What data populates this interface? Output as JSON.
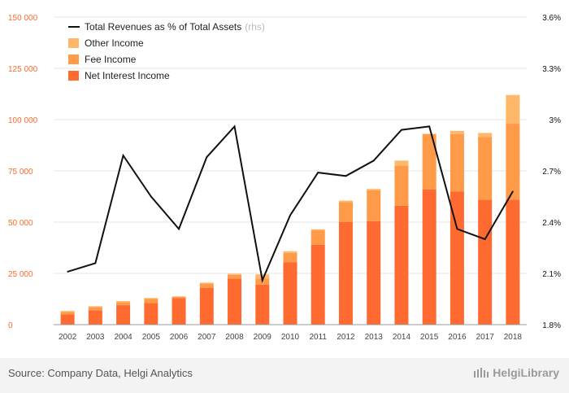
{
  "chart_data": {
    "type": "bar",
    "categories": [
      "2002",
      "2003",
      "2004",
      "2005",
      "2006",
      "2007",
      "2008",
      "2009",
      "2010",
      "2011",
      "2012",
      "2013",
      "2014",
      "2015",
      "2016",
      "2017",
      "2018"
    ],
    "series": [
      {
        "name": "Net Interest Income",
        "type": "bar",
        "axis": "left",
        "color": "#ff6a30",
        "values": [
          5000,
          7000,
          9500,
          10500,
          13000,
          18000,
          22500,
          19500,
          30500,
          39000,
          50000,
          50500,
          58000,
          66000,
          65000,
          61000,
          61000
        ]
      },
      {
        "name": "Fee Income",
        "type": "bar",
        "axis": "left",
        "color": "#ff9a48",
        "values": [
          1200,
          1500,
          1500,
          2000,
          500,
          2000,
          1800,
          3000,
          4500,
          7000,
          9800,
          15000,
          19500,
          27000,
          28000,
          30500,
          37000
        ]
      },
      {
        "name": "Other Income",
        "type": "bar",
        "axis": "left",
        "color": "#ffb86a",
        "values": [
          500,
          500,
          500,
          500,
          300,
          500,
          500,
          2000,
          800,
          500,
          700,
          700,
          2500,
          0,
          1500,
          2000,
          14000
        ]
      },
      {
        "name": "Total Revenues as % of Total Assets",
        "type": "line",
        "axis": "right",
        "color": "#111111",
        "values": [
          2.11,
          2.16,
          2.79,
          2.55,
          2.36,
          2.78,
          2.96,
          2.06,
          2.44,
          2.69,
          2.67,
          2.76,
          2.94,
          2.96,
          2.36,
          2.3,
          2.58
        ]
      }
    ],
    "ylim_left": [
      0,
      150000
    ],
    "yticks_left": [
      "0",
      "25 000",
      "50 000",
      "75 000",
      "100 000",
      "125 000",
      "150 000"
    ],
    "ylim_right": [
      1.8,
      3.6
    ],
    "yticks_right": [
      "1.8%",
      "2.1%",
      "2.4%",
      "2.7%",
      "3%",
      "3.3%",
      "3.6%"
    ],
    "legend_line_suffix": "(rhs)",
    "grid": true,
    "legend_position": "top-left",
    "colors": {
      "axis_left": "#ff6a30",
      "axis_right": "#111111",
      "grid": "#e6e6e6"
    }
  },
  "footer": {
    "source": "Source: Company Data, Helgi Analytics",
    "logo_text": "HelgiLibrary"
  }
}
